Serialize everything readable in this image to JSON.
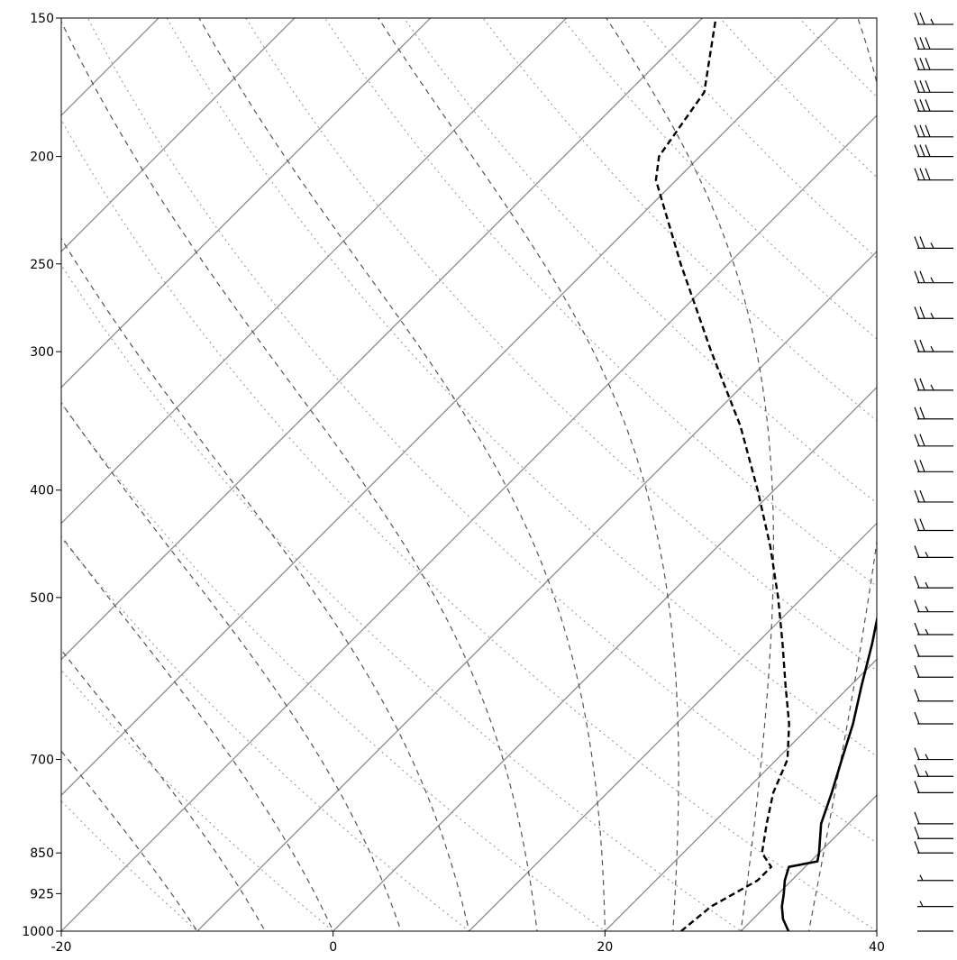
{
  "chart_data": {
    "type": "skew-t",
    "x_axis": {
      "range": [
        -20,
        40
      ],
      "ticks": [
        -20,
        0,
        20,
        40
      ],
      "tick_labels": [
        "-20",
        "0",
        "20",
        "40"
      ]
    },
    "y_axis": {
      "scale": "log-pressure",
      "range": [
        1000,
        150
      ],
      "ticks": [
        1000,
        925,
        850,
        700,
        500,
        400,
        300,
        250,
        200,
        150
      ],
      "tick_labels": [
        "1000",
        "925",
        "850",
        "700",
        "500",
        "400",
        "300",
        "250",
        "200",
        "150"
      ]
    },
    "temperature_profile": [
      {
        "p": 1000,
        "t": 33.5
      },
      {
        "p": 975,
        "t": 32.2
      },
      {
        "p": 950,
        "t": 31.2
      },
      {
        "p": 925,
        "t": 30.4
      },
      {
        "p": 900,
        "t": 29.5
      },
      {
        "p": 875,
        "t": 28.8
      },
      {
        "p": 865,
        "t": 30.5
      },
      {
        "p": 850,
        "t": 30.0
      },
      {
        "p": 800,
        "t": 28.0
      },
      {
        "p": 750,
        "t": 26.5
      },
      {
        "p": 700,
        "t": 24.8
      },
      {
        "p": 650,
        "t": 23.0
      },
      {
        "p": 600,
        "t": 20.8
      },
      {
        "p": 550,
        "t": 18.5
      },
      {
        "p": 500,
        "t": 15.8
      },
      {
        "p": 450,
        "t": 12.8
      },
      {
        "p": 400,
        "t": 9.2
      },
      {
        "p": 350,
        "t": 5.0
      },
      {
        "p": 300,
        "t": 0.0
      },
      {
        "p": 250,
        "t": -6.8
      },
      {
        "p": 220,
        "t": -11.9
      },
      {
        "p": 210,
        "t": -14.4
      },
      {
        "p": 200,
        "t": -14.8
      },
      {
        "p": 190,
        "t": -16.0
      },
      {
        "p": 175,
        "t": -19.0
      },
      {
        "p": 150,
        "t": -24.6
      }
    ],
    "dewpoint_profile": [
      {
        "p": 1000,
        "t": 25.6
      },
      {
        "p": 950,
        "t": 26.0
      },
      {
        "p": 900,
        "t": 27.5
      },
      {
        "p": 875,
        "t": 27.5
      },
      {
        "p": 850,
        "t": 25.8
      },
      {
        "p": 800,
        "t": 24.0
      },
      {
        "p": 750,
        "t": 22.2
      },
      {
        "p": 700,
        "t": 20.8
      },
      {
        "p": 650,
        "t": 18.3
      },
      {
        "p": 600,
        "t": 15.2
      },
      {
        "p": 550,
        "t": 11.9
      },
      {
        "p": 500,
        "t": 8.2
      },
      {
        "p": 450,
        "t": 3.9
      },
      {
        "p": 400,
        "t": -1.2
      },
      {
        "p": 350,
        "t": -7.2
      },
      {
        "p": 300,
        "t": -14.8
      },
      {
        "p": 250,
        "t": -23.5
      },
      {
        "p": 210,
        "t": -31.5
      },
      {
        "p": 200,
        "t": -33.0
      },
      {
        "p": 175,
        "t": -34.4
      },
      {
        "p": 150,
        "t": -39.0
      }
    ],
    "wind_barbs": [
      {
        "p": 1000,
        "barb": [
          0,
          0,
          0
        ]
      },
      {
        "p": 950,
        "barb": [
          0,
          0,
          1
        ]
      },
      {
        "p": 900,
        "barb": [
          0,
          0,
          1
        ]
      },
      {
        "p": 850,
        "barb": [
          0,
          1,
          0
        ]
      },
      {
        "p": 825,
        "barb": [
          0,
          1,
          0
        ]
      },
      {
        "p": 800,
        "barb": [
          0,
          1,
          0
        ]
      },
      {
        "p": 750,
        "barb": [
          0,
          1,
          0
        ]
      },
      {
        "p": 725,
        "barb": [
          0,
          1,
          1
        ]
      },
      {
        "p": 700,
        "barb": [
          0,
          1,
          1
        ]
      },
      {
        "p": 650,
        "barb": [
          0,
          1,
          0
        ]
      },
      {
        "p": 620,
        "barb": [
          0,
          1,
          0
        ]
      },
      {
        "p": 590,
        "barb": [
          0,
          1,
          0
        ]
      },
      {
        "p": 565,
        "barb": [
          0,
          1,
          0
        ]
      },
      {
        "p": 540,
        "barb": [
          0,
          1,
          1
        ]
      },
      {
        "p": 515,
        "barb": [
          0,
          1,
          1
        ]
      },
      {
        "p": 490,
        "barb": [
          0,
          1,
          1
        ]
      },
      {
        "p": 460,
        "barb": [
          0,
          1,
          1
        ]
      },
      {
        "p": 435,
        "barb": [
          0,
          2,
          0
        ]
      },
      {
        "p": 410,
        "barb": [
          0,
          2,
          0
        ]
      },
      {
        "p": 385,
        "barb": [
          0,
          2,
          0
        ]
      },
      {
        "p": 365,
        "barb": [
          0,
          2,
          0
        ]
      },
      {
        "p": 345,
        "barb": [
          0,
          2,
          0
        ]
      },
      {
        "p": 325,
        "barb": [
          0,
          2,
          1
        ]
      },
      {
        "p": 300,
        "barb": [
          0,
          2,
          1
        ]
      },
      {
        "p": 280,
        "barb": [
          0,
          2,
          1
        ]
      },
      {
        "p": 260,
        "barb": [
          0,
          2,
          1
        ]
      },
      {
        "p": 242,
        "barb": [
          0,
          2,
          1
        ]
      },
      {
        "p": 210,
        "barb": [
          0,
          3,
          0
        ]
      },
      {
        "p": 200,
        "barb": [
          0,
          3,
          0
        ]
      },
      {
        "p": 192,
        "barb": [
          0,
          3,
          0
        ]
      },
      {
        "p": 182,
        "barb": [
          0,
          3,
          0
        ]
      },
      {
        "p": 175,
        "barb": [
          0,
          3,
          0
        ]
      },
      {
        "p": 167,
        "barb": [
          0,
          3,
          0
        ]
      },
      {
        "p": 160,
        "barb": [
          0,
          3,
          0
        ]
      },
      {
        "p": 152,
        "barb": [
          0,
          2,
          1
        ]
      }
    ],
    "background_lines": {
      "isotherms": [
        -100,
        -90,
        -80,
        -70,
        -60,
        -50,
        -40,
        -30,
        -20,
        -10,
        0,
        10,
        20,
        30,
        40
      ],
      "dry_adiabats": [
        -30,
        -20,
        -10,
        0,
        10,
        20,
        30,
        40,
        50,
        60,
        70,
        80,
        90,
        100,
        110,
        120,
        130,
        140,
        150,
        160,
        170
      ],
      "moist_adiabats": [
        -10,
        -5,
        0,
        5,
        10,
        15,
        20,
        25,
        30,
        35,
        40,
        45
      ]
    },
    "grid": true,
    "legend": false
  }
}
